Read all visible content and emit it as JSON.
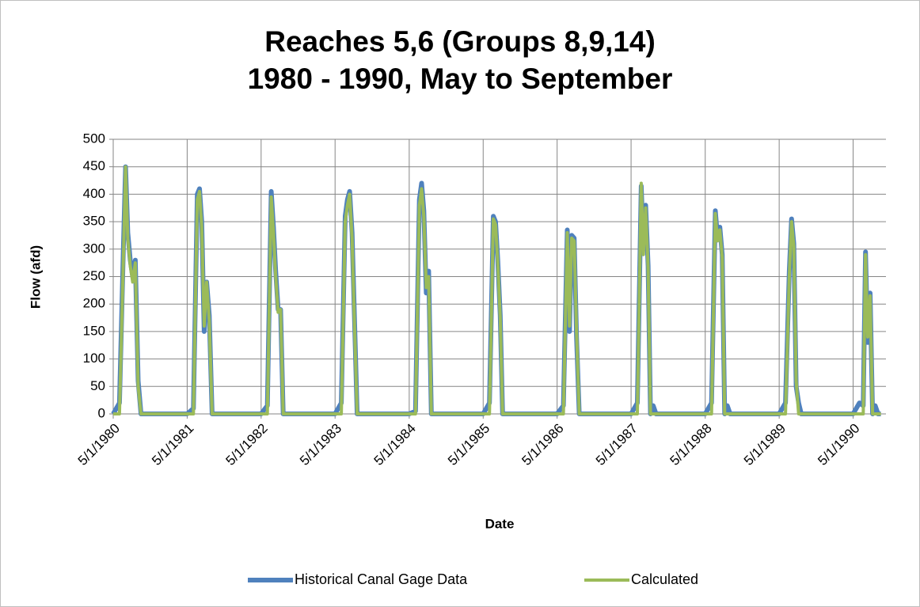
{
  "chart_data": {
    "type": "line",
    "title": "Reaches 5,6 (Groups 8,9,14)",
    "subtitle": "1980 - 1990, May to September",
    "x_label": "Date",
    "y_label": "Flow (afd)",
    "xlim": [
      "1980-05-01",
      "1990-10-10"
    ],
    "xticks": [
      {
        "value": "1980-05-01",
        "label": "5/1/1980"
      },
      {
        "value": "1981-05-01",
        "label": "5/1/1981"
      },
      {
        "value": "1982-05-01",
        "label": "5/1/1982"
      },
      {
        "value": "1983-05-01",
        "label": "5/1/1983"
      },
      {
        "value": "1984-05-01",
        "label": "5/1/1984"
      },
      {
        "value": "1985-05-01",
        "label": "5/1/1985"
      },
      {
        "value": "1986-05-01",
        "label": "5/1/1986"
      },
      {
        "value": "1987-05-01",
        "label": "5/1/1987"
      },
      {
        "value": "1988-05-01",
        "label": "5/1/1988"
      },
      {
        "value": "1989-05-01",
        "label": "5/1/1989"
      },
      {
        "value": "1990-05-01",
        "label": "5/1/1990"
      }
    ],
    "ylim": [
      0,
      500
    ],
    "yticks": [
      0,
      50,
      100,
      150,
      200,
      250,
      300,
      350,
      400,
      450,
      500
    ],
    "grid": true,
    "legend": "bottom",
    "x": [
      "1980-05-01",
      "1980-06-01",
      "1980-06-20",
      "1980-07-01",
      "1980-07-12",
      "1980-07-24",
      "1980-08-05",
      "1980-08-18",
      "1980-09-01",
      "1980-09-15",
      "1981-05-01",
      "1981-06-01",
      "1981-06-20",
      "1981-07-01",
      "1981-07-12",
      "1981-07-24",
      "1981-08-05",
      "1981-08-18",
      "1981-09-01",
      "1981-09-15",
      "1982-05-01",
      "1982-06-01",
      "1982-06-20",
      "1982-07-01",
      "1982-07-12",
      "1982-07-24",
      "1982-08-05",
      "1982-08-18",
      "1982-09-01",
      "1982-09-15",
      "1983-05-01",
      "1983-06-01",
      "1983-06-20",
      "1983-07-01",
      "1983-07-12",
      "1983-07-24",
      "1983-08-05",
      "1983-08-18",
      "1983-09-01",
      "1983-09-15",
      "1984-05-01",
      "1984-06-01",
      "1984-06-20",
      "1984-07-01",
      "1984-07-12",
      "1984-07-24",
      "1984-08-05",
      "1984-08-18",
      "1984-09-01",
      "1984-09-15",
      "1985-05-01",
      "1985-06-01",
      "1985-06-20",
      "1985-07-01",
      "1985-07-12",
      "1985-07-24",
      "1985-08-05",
      "1985-08-18",
      "1985-09-01",
      "1985-09-15",
      "1986-05-01",
      "1986-06-01",
      "1986-06-20",
      "1986-07-01",
      "1986-07-12",
      "1986-07-24",
      "1986-08-05",
      "1986-08-18",
      "1986-09-01",
      "1986-09-15",
      "1987-05-01",
      "1987-06-01",
      "1987-06-20",
      "1987-07-01",
      "1987-07-12",
      "1987-07-24",
      "1987-08-05",
      "1987-08-18",
      "1987-09-01",
      "1987-09-15",
      "1988-05-01",
      "1988-06-01",
      "1988-06-20",
      "1988-07-01",
      "1988-07-12",
      "1988-07-24",
      "1988-08-05",
      "1988-08-18",
      "1988-09-01",
      "1988-09-15",
      "1989-05-01",
      "1989-06-01",
      "1989-06-20",
      "1989-07-01",
      "1989-07-12",
      "1989-07-24",
      "1989-08-05",
      "1989-08-18",
      "1989-09-01",
      "1989-09-15",
      "1990-05-01",
      "1990-06-01",
      "1990-06-20",
      "1990-07-01",
      "1990-07-12",
      "1990-07-24",
      "1990-08-05",
      "1990-08-18",
      "1990-09-01",
      "1990-09-15"
    ],
    "series": [
      {
        "name": "Historical Canal Gage Data",
        "color": "#4f81bd",
        "values": [
          0,
          20,
          300,
          450,
          330,
          280,
          250,
          280,
          60,
          0,
          0,
          10,
          400,
          410,
          350,
          150,
          240,
          180,
          0,
          0,
          0,
          15,
          405,
          340,
          260,
          190,
          190,
          0,
          0,
          0,
          0,
          20,
          360,
          390,
          405,
          330,
          170,
          0,
          0,
          0,
          0,
          5,
          390,
          420,
          370,
          220,
          260,
          0,
          0,
          0,
          0,
          20,
          360,
          350,
          280,
          180,
          0,
          0,
          0,
          0,
          0,
          15,
          335,
          150,
          325,
          320,
          140,
          0,
          0,
          0,
          0,
          20,
          415,
          300,
          380,
          270,
          0,
          15,
          0,
          0,
          0,
          20,
          370,
          320,
          340,
          290,
          0,
          15,
          0,
          0,
          0,
          20,
          260,
          355,
          310,
          50,
          20,
          0,
          0,
          0,
          0,
          20,
          15,
          295,
          130,
          220,
          0,
          15,
          0,
          0
        ]
      },
      {
        "name": "Calculated",
        "color": "#9bbb59",
        "values": [
          0,
          0,
          280,
          450,
          320,
          270,
          240,
          275,
          50,
          0,
          0,
          0,
          390,
          405,
          340,
          160,
          240,
          170,
          0,
          0,
          0,
          0,
          395,
          330,
          250,
          185,
          190,
          0,
          0,
          0,
          0,
          0,
          350,
          380,
          400,
          320,
          160,
          0,
          0,
          0,
          0,
          0,
          380,
          410,
          360,
          230,
          250,
          0,
          0,
          0,
          0,
          0,
          355,
          345,
          275,
          175,
          0,
          0,
          0,
          0,
          0,
          0,
          330,
          160,
          320,
          315,
          150,
          0,
          0,
          0,
          0,
          0,
          420,
          290,
          375,
          265,
          0,
          0,
          0,
          0,
          0,
          0,
          365,
          315,
          335,
          285,
          0,
          0,
          0,
          0,
          0,
          0,
          250,
          350,
          305,
          60,
          0,
          0,
          0,
          0,
          0,
          0,
          0,
          290,
          140,
          215,
          0,
          0,
          0,
          0
        ]
      }
    ]
  }
}
